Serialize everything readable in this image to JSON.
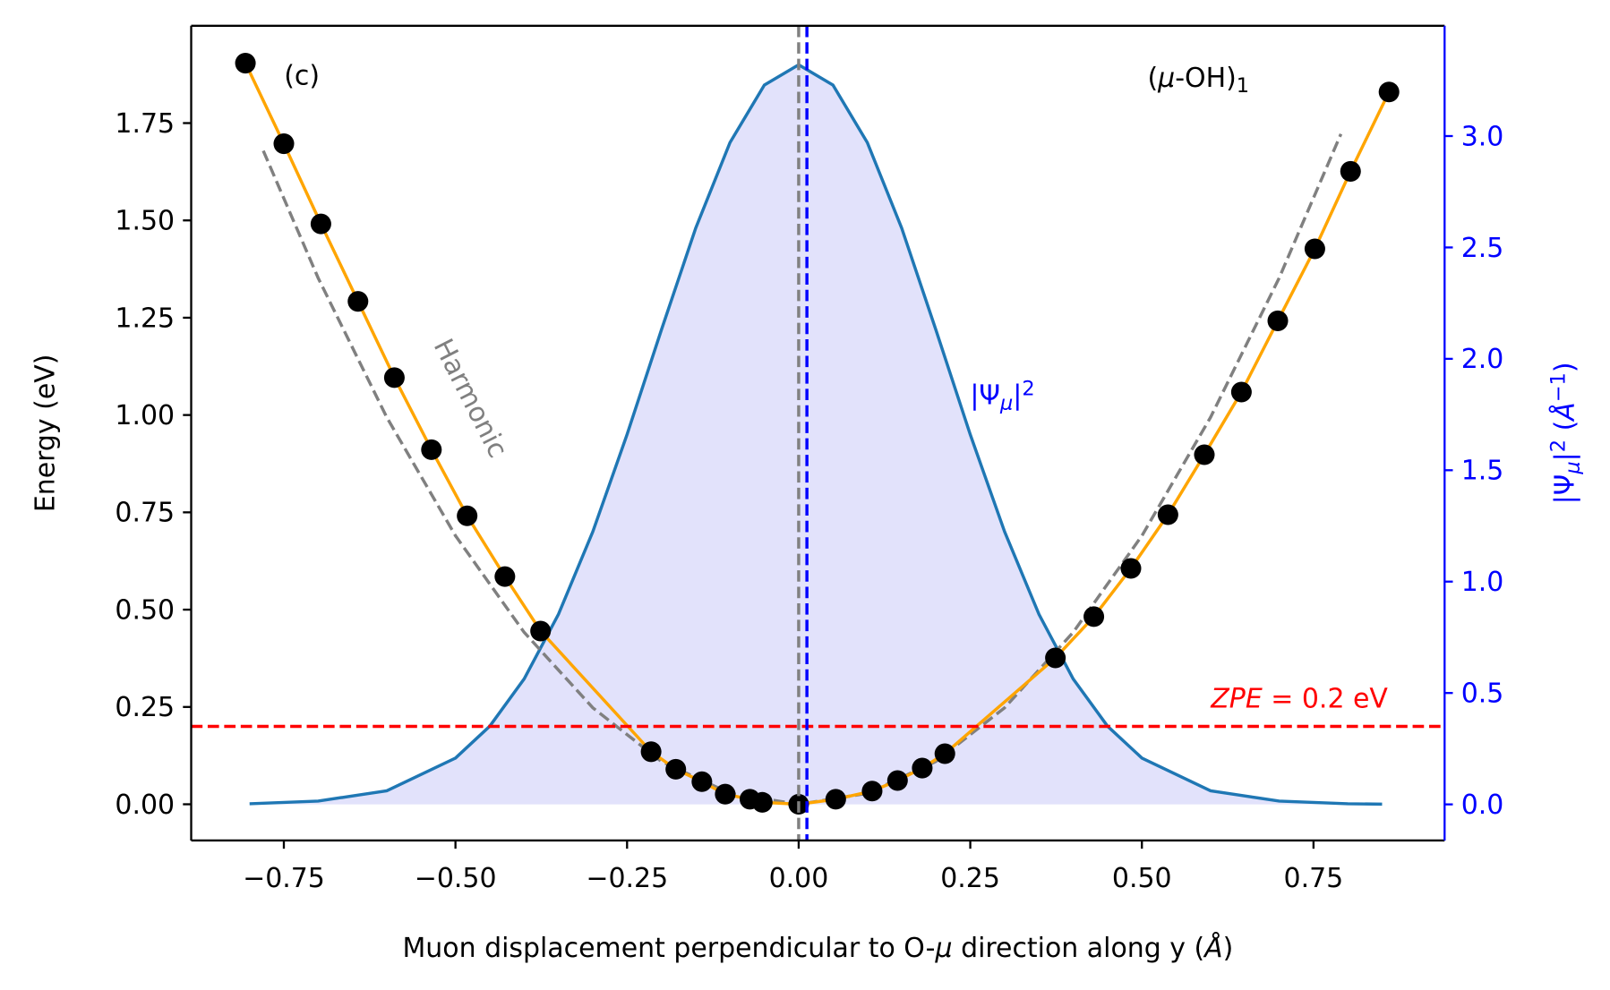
{
  "chart_data": {
    "type": "line",
    "xlabel": [
      {
        "text": "Muon displacement perpendicular to O-"
      },
      {
        "text": "μ",
        "style": "it"
      },
      {
        "text": " direction along y ("
      },
      {
        "text": "Å",
        "style": "it"
      },
      {
        "text": ")"
      }
    ],
    "ylabel": "Energy (eV)",
    "y2label": [
      {
        "text": "|Ψ"
      },
      {
        "text": "μ",
        "style": "sub-it"
      },
      {
        "text": "|"
      },
      {
        "text": "2",
        "style": "sup"
      },
      {
        "text": " ("
      },
      {
        "text": "Å",
        "style": "it"
      },
      {
        "text": "−1",
        "style": "sup"
      },
      {
        "text": ")"
      }
    ],
    "y2color": "#0000ff",
    "xlim": [
      -0.885,
      0.941
    ],
    "ylim": [
      -0.093,
      2.0
    ],
    "y2lim": [
      -0.162,
      3.495
    ],
    "xticks": [
      {
        "value": -0.75,
        "label": "−0.75"
      },
      {
        "value": -0.5,
        "label": "−0.50"
      },
      {
        "value": -0.25,
        "label": "−0.25"
      },
      {
        "value": 0,
        "label": "0.00"
      },
      {
        "value": 0.25,
        "label": "0.25"
      },
      {
        "value": 0.5,
        "label": "0.50"
      },
      {
        "value": 0.75,
        "label": "0.75"
      }
    ],
    "yticks": [
      {
        "value": 0,
        "label": "0.00"
      },
      {
        "value": 0.25,
        "label": "0.25"
      },
      {
        "value": 0.5,
        "label": "0.50"
      },
      {
        "value": 0.75,
        "label": "0.75"
      },
      {
        "value": 1,
        "label": "1.00"
      },
      {
        "value": 1.25,
        "label": "1.25"
      },
      {
        "value": 1.5,
        "label": "1.50"
      },
      {
        "value": 1.75,
        "label": "1.75"
      }
    ],
    "y2ticks": [
      {
        "value": 0,
        "label": "0.0"
      },
      0.5,
      {
        "value": 1,
        "label": "1.0"
      },
      1.5,
      {
        "value": 2,
        "label": "2.0"
      },
      2.5,
      {
        "value": 3,
        "label": "3.0"
      }
    ],
    "series": [
      {
        "style": "area",
        "axis": "y2",
        "color": "#1f77b4",
        "fill": "#e2e2fb",
        "x": [
          -0.8,
          -0.7,
          -0.6,
          -0.5,
          -0.45,
          -0.4,
          -0.35,
          -0.3,
          -0.25,
          -0.2,
          -0.15,
          -0.1,
          -0.05,
          0,
          0.05,
          0.1,
          0.15,
          0.2,
          0.25,
          0.3,
          0.35,
          0.4,
          0.45,
          0.5,
          0.6,
          0.7,
          0.8,
          0.85
        ],
        "values": [
          0.003,
          0.015,
          0.061,
          0.208,
          0.351,
          0.563,
          0.853,
          1.224,
          1.66,
          2.13,
          2.587,
          2.971,
          3.229,
          3.32,
          3.229,
          2.971,
          2.587,
          2.13,
          1.66,
          1.224,
          0.853,
          0.563,
          0.351,
          0.208,
          0.061,
          0.015,
          0.003,
          0.001
        ]
      },
      {
        "style": "dashed",
        "color": "#808080",
        "x": [
          -0.78,
          -0.7,
          -0.6,
          -0.5,
          -0.4,
          -0.3,
          -0.2,
          -0.1,
          0,
          0.1,
          0.2,
          0.3,
          0.4,
          0.5,
          0.6,
          0.7,
          0.79
        ],
        "values": [
          1.679,
          1.352,
          0.994,
          0.69,
          0.442,
          0.248,
          0.11,
          0.028,
          0,
          0.028,
          0.11,
          0.248,
          0.442,
          0.69,
          0.994,
          1.352,
          1.722
        ]
      },
      {
        "style": "line",
        "color": "#ffa500",
        "x": [
          -0.806,
          -0.75,
          -0.696,
          -0.642,
          -0.589,
          -0.535,
          -0.483,
          -0.428,
          -0.376,
          -0.215,
          -0.179,
          -0.141,
          -0.107,
          -0.071,
          -0.053,
          0,
          0.054,
          0.107,
          0.144,
          0.18,
          0.213,
          0.374,
          0.43,
          0.484,
          0.538,
          0.591,
          0.645,
          0.698,
          0.752,
          0.804,
          0.86
        ],
        "values": [
          1.904,
          1.697,
          1.491,
          1.292,
          1.096,
          0.911,
          0.741,
          0.585,
          0.445,
          0.135,
          0.09,
          0.058,
          0.026,
          0.013,
          0.005,
          0,
          0.013,
          0.034,
          0.061,
          0.093,
          0.13,
          0.376,
          0.482,
          0.606,
          0.744,
          0.898,
          1.059,
          1.242,
          1.427,
          1.626,
          1.83
        ]
      },
      {
        "style": "scatter",
        "color": "#000000",
        "x": [
          -0.806,
          -0.75,
          -0.696,
          -0.642,
          -0.589,
          -0.535,
          -0.483,
          -0.428,
          -0.376,
          -0.215,
          -0.179,
          -0.141,
          -0.107,
          -0.071,
          -0.053,
          0,
          0.054,
          0.107,
          0.144,
          0.18,
          0.213,
          0.374,
          0.43,
          0.484,
          0.538,
          0.591,
          0.645,
          0.698,
          0.752,
          0.804,
          0.86
        ],
        "values": [
          1.904,
          1.697,
          1.491,
          1.292,
          1.096,
          0.911,
          0.741,
          0.585,
          0.445,
          0.135,
          0.09,
          0.058,
          0.026,
          0.013,
          0.005,
          0,
          0.013,
          0.034,
          0.061,
          0.093,
          0.13,
          0.376,
          0.482,
          0.606,
          0.744,
          0.898,
          1.059,
          1.242,
          1.427,
          1.626,
          1.83
        ]
      }
    ],
    "hlines": [
      {
        "y": 0.2,
        "color": "#ff0000"
      }
    ],
    "vlines": [
      {
        "x": 0,
        "color": "#808080"
      },
      {
        "x": 0.012,
        "color": "#0000ff"
      }
    ],
    "annotations": [
      {
        "parts": [
          {
            "text": "(c)"
          }
        ],
        "color": "#000000"
      },
      {
        "parts": [
          {
            "text": "("
          },
          {
            "text": "μ",
            "style": "it"
          },
          {
            "text": "-OH)"
          },
          {
            "text": "1",
            "style": "sub"
          }
        ],
        "color": "#000000"
      },
      {
        "parts": [
          {
            "text": "Harmonic"
          }
        ],
        "color": "#808080"
      },
      {
        "parts": [
          {
            "text": "|Ψ"
          },
          {
            "text": "μ",
            "style": "sub-it"
          },
          {
            "text": "|"
          },
          {
            "text": "2",
            "style": "sup"
          }
        ],
        "color": "#0000ff"
      },
      {
        "parts": [
          {
            "text": "ZPE",
            "style": "it"
          },
          {
            "text": " = 0.2 eV"
          }
        ],
        "color": "#ff0000"
      }
    ]
  }
}
